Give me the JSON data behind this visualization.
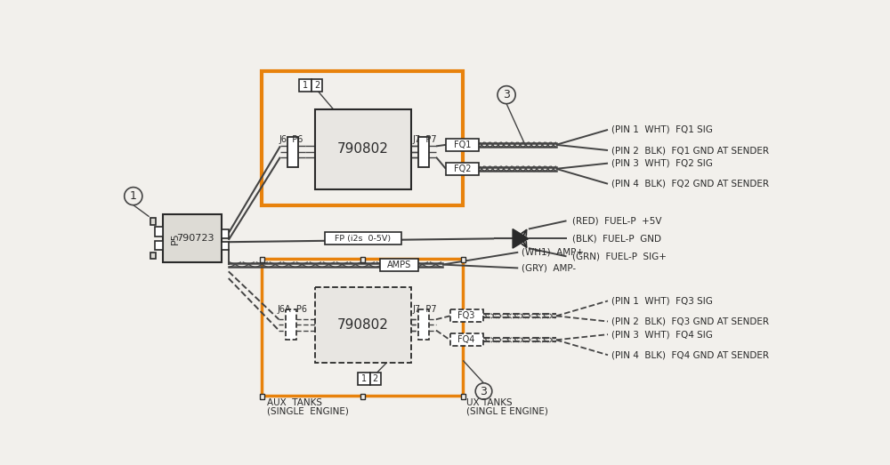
{
  "bg_color": "#f2f0ec",
  "orange_color": "#E8820C",
  "dark_color": "#2a2a2a",
  "line_color": "#444444",
  "annotations": {
    "box_top_number": "790802",
    "box_bottom_number": "790802",
    "connector_label": "790723",
    "j6_p6_top": "J6  P6",
    "j7_p7_top": "J7  P7",
    "j6a_p6_bot": "J6A  P6",
    "j7_p7_bot": "J7  P7",
    "fq1": "FQ1",
    "fq2": "FQ2",
    "fq3": "FQ3",
    "fq4": "FQ4",
    "fp_label": "FP (i2s  0-5V)",
    "amps_label": "AMPS",
    "aux_tanks_label1": "AUX  TANKS",
    "aux_tanks_label2": "(SINGLE  ENGINE)",
    "aux_tanks_right1": "UX TANKS",
    "aux_tanks_right2": "(SINGL E ENGINE)",
    "p5_label": "P5",
    "pin1_wht_fq1": "(PIN 1  WHT)  FQ1 SIG",
    "pin2_blk_fq1": "(PIN 2  BLK)  FQ1 GND AT SENDER",
    "pin3_wht_fq2": "(PIN 3  WHT)  FQ2 SIG",
    "pin4_blk_fq2": "(PIN 4  BLK)  FQ2 GND AT SENDER",
    "red_fuel": "(RED)  FUEL-P  +5V",
    "blk_fuel": "(BLK)  FUEL-P  GND",
    "grn_fuel": "(GRN)  FUEL-P  SIG+",
    "wh1_amp": "(WH1)  AMP+",
    "gry_amp": "(GRY)  AMP-",
    "pin1_wht_fq3": "(PIN 1  WHT)  FQ3 SIG",
    "pin2_blk_fq3": "(PIN 2  BLK)  FQ3 GND AT SENDER",
    "pin3_wht_fq4": "(PIN 3  WHT)  FQ4 SIG",
    "pin4_blk_fq4": "(PIN 4  BLK)  FQ4 GND AT SENDER"
  }
}
